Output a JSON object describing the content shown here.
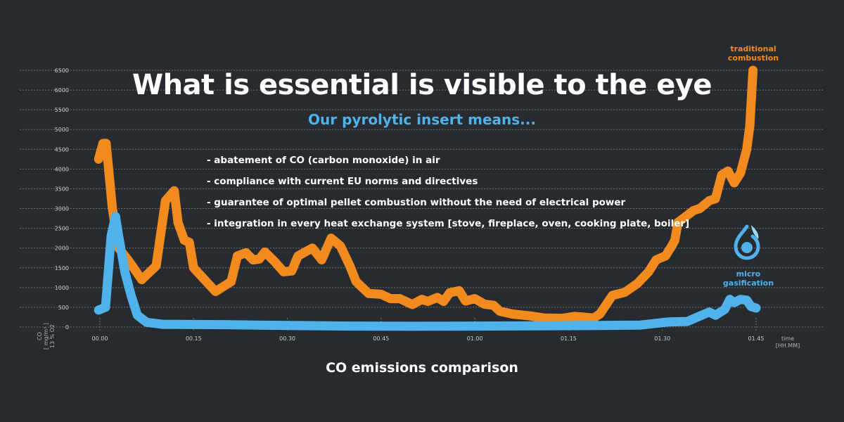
{
  "header": {
    "title": "What is essential is visible to the eye",
    "subtitle": "Our pyrolytic insert means..."
  },
  "bullets": [
    "- abatement of CO (carbon monoxide) in air",
    "- compliance with current EU norms and directives",
    "- guarantee of optimal pellet combustion without the need of electrical power",
    "- integration in every heat exchange system [stove, fireplace, oven, cooking plate, boiler]"
  ],
  "labels": {
    "traditional_line1": "traditional",
    "traditional_line2": "combustion",
    "micro_line1": "micro",
    "micro_line2": "gasification",
    "y_axis_line1": "CO",
    "y_axis_line2": "[ mg/m³ ]",
    "y_axis_line3": "13 % O2",
    "x_axis_line1": "time",
    "x_axis_line2": "[HH.MM]"
  },
  "colors": {
    "background": "#272a2f",
    "traditional": "#f28a1d",
    "micro": "#4fb2ea",
    "grid": "#6b6f75",
    "text": "#ffffff"
  },
  "chart_data": {
    "type": "line",
    "title": "CO emissions comparison",
    "xlabel": "time [HH.MM]",
    "ylabel": "CO [ mg/m³ ] 13 % O2",
    "xlim": [
      0,
      105
    ],
    "ylim": [
      0,
      6500
    ],
    "x_ticks": [
      {
        "value": 0,
        "label": "00.00"
      },
      {
        "value": 15,
        "label": "00.15"
      },
      {
        "value": 30,
        "label": "00.30"
      },
      {
        "value": 45,
        "label": "00.45"
      },
      {
        "value": 60,
        "label": "01.00"
      },
      {
        "value": 75,
        "label": "01.15"
      },
      {
        "value": 90,
        "label": "01.30"
      },
      {
        "value": 105,
        "label": "01.45"
      }
    ],
    "y_ticks": [
      0,
      500,
      1000,
      1500,
      2000,
      2500,
      3000,
      3500,
      4000,
      4500,
      5000,
      5500,
      6000,
      6500
    ],
    "grid": true,
    "series": [
      {
        "name": "traditional combustion",
        "color": "#f28a1d",
        "points": [
          [
            -0.2,
            4250
          ],
          [
            0.5,
            4650
          ],
          [
            1.0,
            4650
          ],
          [
            2.0,
            3000
          ],
          [
            3.0,
            2000
          ],
          [
            4.5,
            1700
          ],
          [
            6.7,
            1200
          ],
          [
            9.0,
            1550
          ],
          [
            10.5,
            3200
          ],
          [
            11.9,
            3450
          ],
          [
            12.5,
            2650
          ],
          [
            13.5,
            2200
          ],
          [
            14.3,
            2150
          ],
          [
            15.0,
            1500
          ],
          [
            18.5,
            900
          ],
          [
            21.0,
            1150
          ],
          [
            22.0,
            1800
          ],
          [
            23.4,
            1880
          ],
          [
            24.5,
            1700
          ],
          [
            25.5,
            1720
          ],
          [
            26.4,
            1900
          ],
          [
            28.0,
            1650
          ],
          [
            29.4,
            1400
          ],
          [
            30.7,
            1420
          ],
          [
            31.7,
            1800
          ],
          [
            34.0,
            2000
          ],
          [
            35.5,
            1700
          ],
          [
            37.0,
            2250
          ],
          [
            38.5,
            2050
          ],
          [
            40.0,
            1550
          ],
          [
            41.0,
            1150
          ],
          [
            43.0,
            850
          ],
          [
            45.0,
            830
          ],
          [
            46.5,
            720
          ],
          [
            48.0,
            720
          ],
          [
            50.0,
            570
          ],
          [
            51.5,
            700
          ],
          [
            52.5,
            650
          ],
          [
            54.0,
            750
          ],
          [
            55.0,
            650
          ],
          [
            56.0,
            870
          ],
          [
            57.5,
            920
          ],
          [
            58.5,
            660
          ],
          [
            60.0,
            720
          ],
          [
            61.5,
            580
          ],
          [
            63.0,
            550
          ],
          [
            64.0,
            400
          ],
          [
            66.0,
            330
          ],
          [
            69.0,
            280
          ],
          [
            71.0,
            230
          ],
          [
            74.0,
            220
          ],
          [
            76.0,
            270
          ],
          [
            79.0,
            230
          ],
          [
            80.0,
            330
          ],
          [
            82.0,
            800
          ],
          [
            84.0,
            880
          ],
          [
            86.0,
            1100
          ],
          [
            87.8,
            1400
          ],
          [
            89.0,
            1700
          ],
          [
            90.5,
            1800
          ],
          [
            91.5,
            2050
          ],
          [
            92.0,
            2200
          ],
          [
            92.5,
            2650
          ],
          [
            94.0,
            2830
          ],
          [
            95.0,
            2950
          ],
          [
            96.0,
            3000
          ],
          [
            97.5,
            3200
          ],
          [
            98.5,
            3250
          ],
          [
            99.5,
            3850
          ],
          [
            100.5,
            3950
          ],
          [
            101.5,
            3650
          ],
          [
            102.5,
            3900
          ],
          [
            103.5,
            4500
          ],
          [
            104.0,
            5100
          ],
          [
            104.5,
            6500
          ]
        ]
      },
      {
        "name": "micro gasification",
        "color": "#4fb2ea",
        "points": [
          [
            -0.2,
            430
          ],
          [
            0.9,
            500
          ],
          [
            1.8,
            2300
          ],
          [
            2.5,
            2800
          ],
          [
            3.0,
            2300
          ],
          [
            4.0,
            1400
          ],
          [
            5.0,
            800
          ],
          [
            6.0,
            300
          ],
          [
            7.5,
            120
          ],
          [
            10.0,
            70
          ],
          [
            20.0,
            60
          ],
          [
            30.0,
            40
          ],
          [
            40.0,
            25
          ],
          [
            50.0,
            20
          ],
          [
            60.0,
            25
          ],
          [
            70.0,
            30
          ],
          [
            80.0,
            40
          ],
          [
            86.5,
            50
          ],
          [
            91.0,
            130
          ],
          [
            94.0,
            140
          ],
          [
            96.0,
            280
          ],
          [
            97.5,
            380
          ],
          [
            98.5,
            300
          ],
          [
            100.0,
            450
          ],
          [
            100.8,
            700
          ],
          [
            101.5,
            620
          ],
          [
            102.5,
            700
          ],
          [
            103.5,
            680
          ],
          [
            104.2,
            520
          ],
          [
            105.0,
            480
          ]
        ]
      }
    ]
  }
}
